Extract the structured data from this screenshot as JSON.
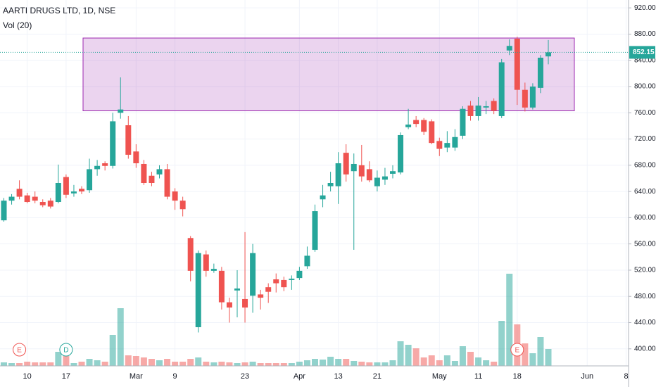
{
  "chart_data": {
    "type": "candlestick",
    "title": "AARTI DRUGS LTD, 1D, NSE",
    "volume_title": "Vol (20)",
    "categories": [
      null,
      null,
      null,
      "10",
      null,
      null,
      null,
      null,
      "17",
      null,
      null,
      null,
      null,
      null,
      null,
      null,
      null,
      "Mar",
      null,
      null,
      null,
      null,
      "9",
      null,
      null,
      null,
      null,
      null,
      null,
      null,
      null,
      "23",
      null,
      null,
      null,
      null,
      null,
      null,
      "Apr",
      null,
      null,
      null,
      null,
      "13",
      null,
      null,
      null,
      null,
      "21",
      null,
      null,
      null,
      null,
      null,
      null,
      null,
      "May",
      null,
      null,
      null,
      null,
      "11",
      null,
      null,
      null,
      null,
      "18",
      null,
      null,
      null,
      null,
      null,
      null,
      null,
      null,
      "Jun",
      null,
      null,
      null,
      null,
      "8"
    ],
    "open": [
      596,
      626,
      644,
      634,
      632,
      624,
      626,
      624,
      662,
      637,
      644,
      642,
      674,
      683,
      679,
      760,
      741,
      701,
      682,
      664,
      666,
      674,
      640,
      626,
      569,
      433,
      544,
      519,
      519,
      471,
      489,
      476,
      481,
      483,
      494,
      506,
      505,
      505,
      508,
      526,
      551,
      628,
      648,
      648,
      699,
      671,
      680,
      674,
      648,
      658,
      667,
      669,
      738,
      749,
      749,
      747,
      717,
      707,
      707,
      725,
      771,
      755,
      768,
      778,
      755,
      855,
      873,
      795,
      768,
      798,
      846,
      null,
      null,
      null,
      null,
      null,
      null,
      null,
      null,
      null,
      null
    ],
    "high": [
      630,
      636,
      657,
      638,
      640,
      628,
      630,
      681,
      666,
      650,
      648,
      690,
      688,
      686,
      760,
      814,
      755,
      712,
      688,
      670,
      680,
      682,
      645,
      632,
      572,
      550,
      550,
      530,
      525,
      478,
      520,
      578,
      560,
      490,
      500,
      515,
      510,
      512,
      525,
      556,
      620,
      650,
      670,
      700,
      712,
      698,
      711,
      686,
      672,
      676,
      680,
      730,
      766,
      755,
      752,
      750,
      722,
      732,
      735,
      770,
      778,
      784,
      778,
      782,
      842,
      872,
      876,
      806,
      805,
      848,
      871,
      null,
      null,
      null,
      null,
      null,
      null,
      null,
      null,
      null,
      null
    ],
    "low": [
      594,
      620,
      628,
      622,
      622,
      616,
      614,
      622,
      630,
      632,
      636,
      638,
      664,
      672,
      675,
      751,
      690,
      676,
      650,
      648,
      660,
      628,
      612,
      602,
      503,
      425,
      510,
      516,
      460,
      440,
      448,
      440,
      455,
      460,
      470,
      486,
      488,
      490,
      505,
      522,
      548,
      616,
      640,
      621,
      655,
      551,
      655,
      654,
      640,
      650,
      660,
      666,
      735,
      738,
      726,
      712,
      694,
      700,
      702,
      720,
      748,
      748,
      758,
      758,
      752,
      848,
      772,
      762,
      765,
      790,
      834,
      null,
      null,
      null,
      null,
      null,
      null,
      null,
      null,
      null,
      null
    ],
    "close": [
      626,
      632,
      632,
      624,
      626,
      619,
      617,
      653,
      635,
      640,
      640,
      674,
      679,
      679,
      747,
      765,
      696,
      683,
      653,
      653,
      674,
      632,
      626,
      613,
      519,
      546,
      519,
      522,
      471,
      463,
      492,
      463,
      546,
      478,
      487,
      500,
      494,
      507,
      519,
      542,
      610,
      634,
      653,
      683,
      666,
      682,
      663,
      657,
      661,
      663,
      671,
      726,
      742,
      743,
      731,
      714,
      705,
      714,
      723,
      766,
      755,
      771,
      770,
      763,
      837,
      862,
      795,
      768,
      800,
      844,
      852.15,
      null,
      null,
      null,
      null,
      null,
      null,
      null,
      null,
      null,
      null
    ],
    "volume": [
      5,
      4,
      4,
      6,
      5,
      5,
      5,
      20,
      14,
      4,
      6,
      10,
      8,
      6,
      44,
      82,
      15,
      14,
      12,
      10,
      8,
      10,
      6,
      6,
      10,
      12,
      6,
      5,
      6,
      5,
      4,
      5,
      6,
      4,
      4,
      4,
      4,
      4,
      6,
      8,
      10,
      9,
      13,
      10,
      10,
      7,
      6,
      5,
      5,
      5,
      8,
      35,
      30,
      25,
      12,
      15,
      8,
      15,
      7,
      28,
      20,
      12,
      8,
      6,
      64,
      131,
      59,
      32,
      18,
      41,
      24,
      null,
      null,
      null,
      null,
      null,
      null,
      null,
      null,
      null,
      null
    ],
    "volume_ylim": [
      0,
      160
    ],
    "up_color": "#26a69a",
    "down_color": "#ef5350",
    "ylim": [
      374,
      932
    ],
    "yticks": [
      {
        "value": 400,
        "label": "400.00"
      },
      {
        "value": 440,
        "label": "440.00"
      },
      {
        "value": 480,
        "label": "480.00"
      },
      {
        "value": 520,
        "label": "520.00"
      },
      {
        "value": 560,
        "label": "560.00"
      },
      {
        "value": 600,
        "label": "600.00"
      },
      {
        "value": 640,
        "label": "640.00"
      },
      {
        "value": 680,
        "label": "680.00"
      },
      {
        "value": 720,
        "label": "720.00"
      },
      {
        "value": 760,
        "label": "760.00"
      },
      {
        "value": 800,
        "label": "800.00"
      },
      {
        "value": 840,
        "label": "840.00"
      },
      {
        "value": 880,
        "label": "880.00"
      },
      {
        "value": 920,
        "label": "920.00"
      }
    ],
    "grid": true,
    "last_price": {
      "value": 852.15,
      "label": "852.15"
    },
    "zone": {
      "low": 763,
      "high": 874,
      "color": "#9c27b0"
    },
    "events": [
      {
        "label": "E",
        "index": 2,
        "color": "#ef5350"
      },
      {
        "label": "D",
        "index": 8,
        "color": "#26a69a"
      },
      {
        "label": "E",
        "index": 66,
        "color": "#ef5350"
      }
    ]
  }
}
